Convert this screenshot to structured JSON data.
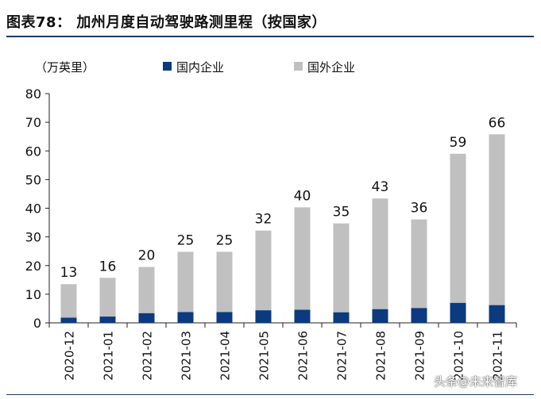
{
  "title": "图表78： 加州月度自动驾驶路测里程（按国家）",
  "watermark": "头条@未来智库",
  "colors": {
    "domestic": "#0b3a7e",
    "foreign": "#c0c0c0",
    "title_rule": "#1f3864"
  },
  "chart_data": {
    "type": "bar",
    "stacked": true,
    "unit_label": "（万英里）",
    "categories": [
      "2020-12",
      "2021-01",
      "2021-02",
      "2021-03",
      "2021-04",
      "2021-05",
      "2021-06",
      "2021-07",
      "2021-08",
      "2021-09",
      "2021-10",
      "2021-11"
    ],
    "series": [
      {
        "name": "国内企业",
        "values": [
          1.8,
          2.2,
          3.4,
          3.8,
          3.8,
          4.4,
          4.6,
          3.7,
          4.8,
          5.2,
          7.0,
          6.2
        ]
      },
      {
        "name": "国外企业",
        "values": [
          11.7,
          13.5,
          16.1,
          21.0,
          21.0,
          27.8,
          35.7,
          31.0,
          38.6,
          30.9,
          52.0,
          59.6
        ]
      }
    ],
    "total_labels": [
      "13",
      "16",
      "20",
      "25",
      "25",
      "32",
      "40",
      "35",
      "43",
      "36",
      "59",
      "66"
    ],
    "yticks": [
      0,
      10,
      20,
      30,
      40,
      50,
      60,
      70,
      80
    ],
    "ylim": [
      0,
      80
    ],
    "legend_position": "top",
    "grid": false
  }
}
